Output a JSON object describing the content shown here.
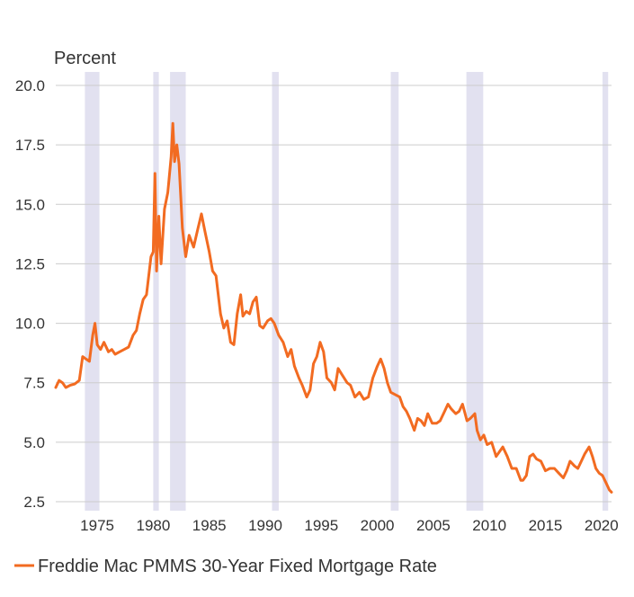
{
  "chart_data": {
    "type": "line",
    "title": "",
    "ylabel": "Percent",
    "xlim": [
      1971.3,
      2020.9
    ],
    "ylim": [
      2.5,
      20.0
    ],
    "x_ticks": [
      1975,
      1980,
      1985,
      1990,
      1995,
      2000,
      2005,
      2010,
      2015,
      2020
    ],
    "y_ticks": [
      2.5,
      5.0,
      7.5,
      10.0,
      12.5,
      15.0,
      17.5,
      20.0
    ],
    "y_tick_labels": [
      "2.5",
      "5.0",
      "7.5",
      "10.0",
      "12.5",
      "15.0",
      "17.5",
      "20.0"
    ],
    "grid": "horizontal",
    "legend_position": "bottom-left",
    "colors": {
      "line": "#f26b21",
      "recession": "#e2e1f0",
      "grid": "#cccccc"
    },
    "recession_bands": [
      [
        1973.9,
        1975.2
      ],
      [
        1980.0,
        1980.5
      ],
      [
        1981.5,
        1982.9
      ],
      [
        1990.6,
        1991.2
      ],
      [
        2001.2,
        2001.9
      ],
      [
        2007.95,
        2009.45
      ],
      [
        2020.1,
        2020.6
      ]
    ],
    "series": [
      {
        "name": "Freddie Mac PMMS 30-Year Fixed Mortgage Rate",
        "x": [
          1971.3,
          1971.6,
          1971.9,
          1972.2,
          1972.6,
          1973.0,
          1973.4,
          1973.7,
          1974.0,
          1974.3,
          1974.6,
          1974.8,
          1975.0,
          1975.3,
          1975.6,
          1976.0,
          1976.3,
          1976.6,
          1977.0,
          1977.4,
          1977.8,
          1978.2,
          1978.5,
          1978.8,
          1979.1,
          1979.4,
          1979.8,
          1980.0,
          1980.15,
          1980.3,
          1980.5,
          1980.7,
          1981.0,
          1981.3,
          1981.6,
          1981.75,
          1981.9,
          1982.1,
          1982.3,
          1982.6,
          1982.9,
          1983.2,
          1983.6,
          1984.0,
          1984.3,
          1984.6,
          1985.0,
          1985.3,
          1985.6,
          1986.0,
          1986.3,
          1986.6,
          1986.9,
          1987.2,
          1987.5,
          1987.8,
          1988.0,
          1988.3,
          1988.6,
          1988.9,
          1989.2,
          1989.5,
          1989.8,
          1990.2,
          1990.5,
          1990.8,
          1991.2,
          1991.6,
          1992.0,
          1992.3,
          1992.6,
          1993.0,
          1993.3,
          1993.7,
          1994.0,
          1994.3,
          1994.6,
          1994.9,
          1995.2,
          1995.5,
          1995.9,
          1996.2,
          1996.5,
          1996.9,
          1997.3,
          1997.6,
          1998.0,
          1998.4,
          1998.8,
          1999.2,
          1999.6,
          2000.0,
          2000.3,
          2000.6,
          2000.9,
          2001.2,
          2001.6,
          2002.0,
          2002.3,
          2002.6,
          2002.9,
          2003.3,
          2003.6,
          2003.9,
          2004.2,
          2004.5,
          2004.9,
          2005.3,
          2005.6,
          2006.0,
          2006.3,
          2006.6,
          2007.0,
          2007.3,
          2007.6,
          2008.0,
          2008.3,
          2008.7,
          2008.9,
          2009.2,
          2009.5,
          2009.8,
          2010.2,
          2010.6,
          2010.9,
          2011.2,
          2011.6,
          2012.0,
          2012.4,
          2012.8,
          2013.0,
          2013.3,
          2013.6,
          2013.9,
          2014.2,
          2014.6,
          2015.0,
          2015.4,
          2015.8,
          2016.2,
          2016.6,
          2016.9,
          2017.2,
          2017.6,
          2017.9,
          2018.2,
          2018.5,
          2018.9,
          2019.2,
          2019.5,
          2019.8,
          2020.1,
          2020.4,
          2020.7,
          2020.9
        ],
        "values": [
          7.3,
          7.6,
          7.5,
          7.3,
          7.4,
          7.45,
          7.6,
          8.6,
          8.5,
          8.4,
          9.5,
          10.0,
          9.1,
          8.9,
          9.2,
          8.8,
          8.9,
          8.7,
          8.8,
          8.9,
          9.0,
          9.5,
          9.7,
          10.4,
          11.0,
          11.2,
          12.8,
          13.0,
          16.3,
          12.2,
          14.5,
          12.5,
          14.8,
          15.5,
          17.0,
          18.4,
          16.8,
          17.5,
          16.7,
          14.0,
          12.8,
          13.7,
          13.2,
          14.0,
          14.6,
          13.9,
          13.0,
          12.2,
          12.0,
          10.4,
          9.8,
          10.1,
          9.2,
          9.1,
          10.4,
          11.2,
          10.3,
          10.5,
          10.4,
          10.9,
          11.1,
          9.9,
          9.8,
          10.1,
          10.2,
          10.0,
          9.5,
          9.2,
          8.6,
          8.9,
          8.2,
          7.7,
          7.4,
          6.9,
          7.2,
          8.3,
          8.6,
          9.2,
          8.8,
          7.7,
          7.5,
          7.2,
          8.1,
          7.8,
          7.5,
          7.4,
          6.9,
          7.1,
          6.8,
          6.9,
          7.7,
          8.2,
          8.5,
          8.1,
          7.5,
          7.1,
          7.0,
          6.9,
          6.5,
          6.3,
          6.0,
          5.5,
          6.0,
          5.9,
          5.7,
          6.2,
          5.8,
          5.8,
          5.9,
          6.3,
          6.6,
          6.4,
          6.2,
          6.3,
          6.6,
          5.9,
          6.0,
          6.2,
          5.5,
          5.1,
          5.3,
          4.9,
          5.0,
          4.4,
          4.6,
          4.8,
          4.4,
          3.9,
          3.9,
          3.4,
          3.4,
          3.6,
          4.4,
          4.5,
          4.3,
          4.2,
          3.8,
          3.9,
          3.9,
          3.7,
          3.5,
          3.8,
          4.2,
          4.0,
          3.9,
          4.2,
          4.5,
          4.8,
          4.4,
          3.9,
          3.7,
          3.6,
          3.3,
          3.0,
          2.9
        ]
      }
    ]
  }
}
